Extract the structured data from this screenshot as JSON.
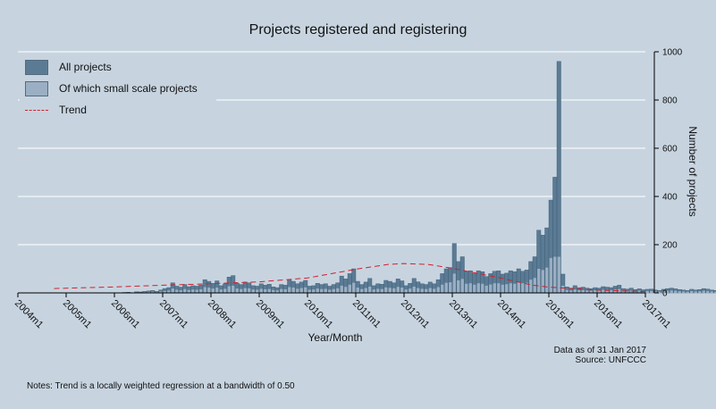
{
  "chart_data": {
    "type": "bar",
    "title": "Projects registered and registering",
    "xlabel": "Year/Month",
    "ylabel": "Number of projects",
    "ylim": [
      0,
      1000
    ],
    "yticks": [
      0,
      200,
      400,
      600,
      800,
      1000
    ],
    "xticks": [
      "2004m1",
      "2005m1",
      "2006m1",
      "2007m1",
      "2008m1",
      "2009m1",
      "2010m1",
      "2011m1",
      "2012m1",
      "2013m1",
      "2014m1",
      "2015m1",
      "2016m1",
      "2017m1"
    ],
    "x_range": [
      "2004m1",
      "2017m1"
    ],
    "x_start": "2004m1",
    "grid": true,
    "legend": "top-left",
    "colors": {
      "all": "#5b7b95",
      "small": "#9aafc3",
      "trend": "#d0202a",
      "background": "#c7d4e0",
      "grid": "#ffffff"
    },
    "series": [
      {
        "name": "All projects",
        "values": [
          0,
          0,
          0,
          0,
          0,
          0,
          0,
          0,
          0,
          0,
          0,
          0,
          0,
          0,
          0,
          0,
          0,
          0,
          0,
          0,
          0,
          0,
          0,
          0,
          0,
          0,
          2,
          3,
          1,
          5,
          4,
          6,
          8,
          10,
          6,
          12,
          18,
          22,
          42,
          28,
          24,
          35,
          26,
          30,
          28,
          33,
          55,
          48,
          40,
          50,
          30,
          38,
          66,
          72,
          40,
          35,
          45,
          42,
          30,
          28,
          38,
          32,
          36,
          25,
          22,
          35,
          32,
          55,
          48,
          38,
          45,
          52,
          28,
          30,
          40,
          35,
          38,
          28,
          35,
          42,
          70,
          58,
          80,
          100,
          48,
          35,
          45,
          60,
          30,
          38,
          36,
          52,
          48,
          42,
          58,
          50,
          30,
          40,
          60,
          46,
          38,
          35,
          45,
          38,
          55,
          80,
          100,
          105,
          205,
          130,
          150,
          90,
          92,
          80,
          92,
          88,
          68,
          80,
          90,
          92,
          78,
          82,
          92,
          88,
          100,
          90,
          95,
          130,
          150,
          260,
          240,
          270,
          385,
          480,
          960,
          78,
          25,
          20,
          30,
          22,
          24,
          20,
          18,
          22,
          20,
          26,
          24,
          22,
          28,
          32,
          18,
          16,
          20,
          14,
          17,
          13,
          15,
          16,
          12,
          10,
          15,
          18,
          20,
          17,
          14,
          12,
          10,
          15,
          12,
          14,
          18,
          16,
          12,
          10,
          12,
          14,
          18,
          10,
          8,
          12,
          10,
          8,
          6,
          7,
          8,
          6,
          5,
          6,
          5,
          5,
          4,
          6,
          4,
          3,
          5,
          4,
          3,
          4,
          2
        ]
      },
      {
        "name": "Of which small scale projects",
        "values": [
          0,
          0,
          0,
          0,
          0,
          0,
          0,
          0,
          0,
          0,
          0,
          0,
          0,
          0,
          0,
          0,
          0,
          0,
          0,
          0,
          0,
          0,
          0,
          0,
          0,
          0,
          1,
          1,
          0,
          2,
          2,
          3,
          4,
          5,
          3,
          6,
          8,
          10,
          18,
          13,
          11,
          16,
          12,
          14,
          13,
          15,
          24,
          22,
          18,
          22,
          14,
          17,
          28,
          30,
          18,
          16,
          20,
          19,
          14,
          13,
          17,
          15,
          16,
          12,
          10,
          16,
          15,
          24,
          22,
          17,
          20,
          23,
          13,
          14,
          18,
          16,
          17,
          13,
          16,
          19,
          30,
          25,
          34,
          42,
          22,
          16,
          20,
          26,
          14,
          17,
          16,
          23,
          21,
          19,
          25,
          22,
          14,
          18,
          26,
          20,
          17,
          16,
          20,
          17,
          24,
          34,
          42,
          44,
          80,
          52,
          58,
          38,
          40,
          34,
          40,
          38,
          30,
          35,
          40,
          40,
          34,
          36,
          40,
          38,
          44,
          40,
          42,
          55,
          62,
          100,
          95,
          105,
          145,
          150,
          150,
          30,
          12,
          10,
          14,
          11,
          12,
          10,
          9,
          11,
          10,
          13,
          12,
          11,
          14,
          16,
          9,
          8,
          10,
          7,
          9,
          7,
          8,
          8,
          6,
          5,
          8,
          9,
          10,
          9,
          7,
          6,
          5,
          8,
          6,
          7,
          9,
          8,
          6,
          5,
          6,
          7,
          9,
          5,
          4,
          6,
          5,
          4,
          3,
          4,
          4,
          3,
          3,
          3,
          3,
          3,
          2,
          3,
          2,
          2,
          3,
          2,
          2,
          2,
          1
        ]
      },
      {
        "name": "Trend",
        "x": [
          "2004m10",
          "2005m6",
          "2006m1",
          "2007m1",
          "2008m1",
          "2009m1",
          "2010m1",
          "2011m1",
          "2011m9",
          "2012m1",
          "2012m7",
          "2013m1",
          "2014m1",
          "2014m9",
          "2015m1",
          "2016m1",
          "2017m1"
        ],
        "values": [
          18,
          22,
          25,
          32,
          38,
          46,
          62,
          98,
          118,
          122,
          118,
          102,
          62,
          32,
          24,
          12,
          5
        ]
      }
    ],
    "notes": "Notes: Trend is a locally weighted regression at a bandwidth of 0.50",
    "data_note": "Data as of 31 Jan 2017",
    "source": "Source: UNFCCC"
  }
}
